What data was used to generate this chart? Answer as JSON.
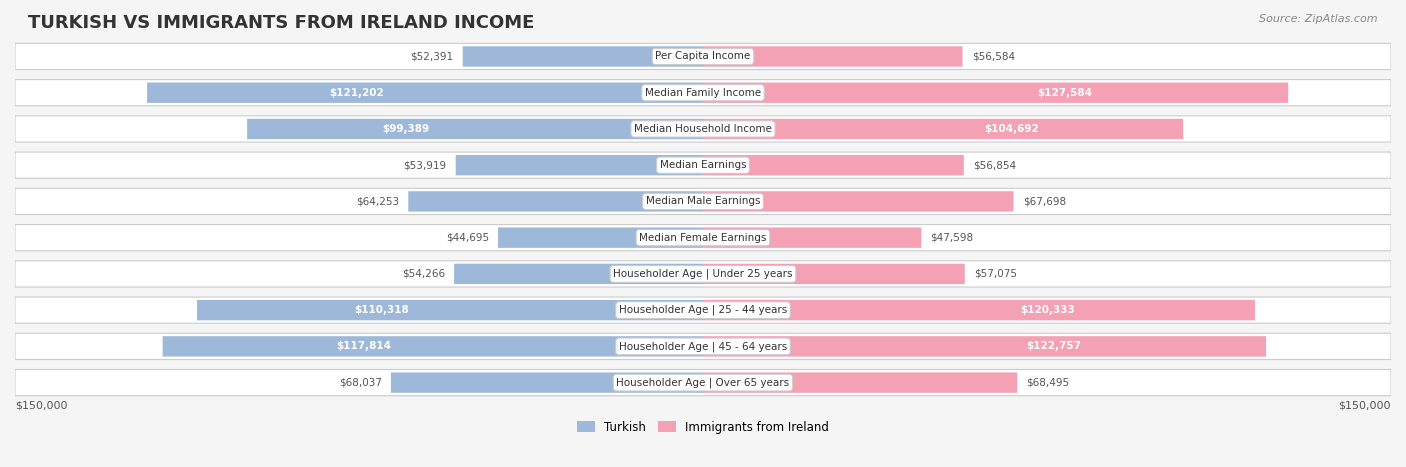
{
  "title": "TURKISH VS IMMIGRANTS FROM IRELAND INCOME",
  "source": "Source: ZipAtlas.com",
  "categories": [
    "Per Capita Income",
    "Median Family Income",
    "Median Household Income",
    "Median Earnings",
    "Median Male Earnings",
    "Median Female Earnings",
    "Householder Age | Under 25 years",
    "Householder Age | 25 - 44 years",
    "Householder Age | 45 - 64 years",
    "Householder Age | Over 65 years"
  ],
  "turkish_values": [
    52391,
    121202,
    99389,
    53919,
    64253,
    44695,
    54266,
    110318,
    117814,
    68037
  ],
  "ireland_values": [
    56584,
    127584,
    104692,
    56854,
    67698,
    47598,
    57075,
    120333,
    122757,
    68495
  ],
  "turkish_labels": [
    "$52,391",
    "$121,202",
    "$99,389",
    "$53,919",
    "$64,253",
    "$44,695",
    "$54,266",
    "$110,318",
    "$117,814",
    "$68,037"
  ],
  "ireland_labels": [
    "$56,584",
    "$127,584",
    "$104,692",
    "$56,854",
    "$67,698",
    "$47,598",
    "$57,075",
    "$120,333",
    "$122,757",
    "$68,495"
  ],
  "turkish_color": "#9db8d9",
  "ireland_color": "#f4a0b5",
  "turkish_label_color_inside": "#ffffff",
  "turkish_label_color_outside": "#555555",
  "ireland_label_color_inside": "#ffffff",
  "ireland_label_color_outside": "#555555",
  "turkish_inside_threshold": 80000,
  "ireland_inside_threshold": 80000,
  "max_value": 150000,
  "legend_turkish": "Turkish",
  "legend_ireland": "Immigrants from Ireland",
  "bg_color": "#f5f5f5",
  "row_bg_color": "#ffffff",
  "row_outline_color": "#cccccc",
  "label_box_color": "#ffffff",
  "label_box_outline": "#cccccc"
}
